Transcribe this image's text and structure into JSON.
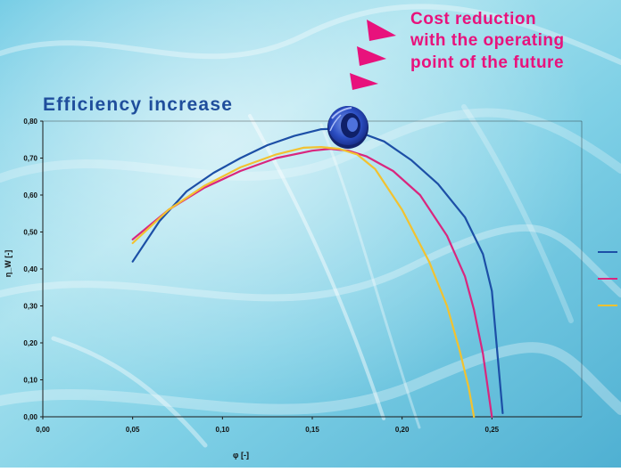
{
  "headline": {
    "lines": [
      "Cost reduction",
      "with the operating",
      "point of the future"
    ],
    "color": "#e8127c"
  },
  "chart_data": {
    "type": "line",
    "title": "Efficiency increase",
    "title_color": "#1f4e9c",
    "xlabel": "φ [-]",
    "ylabel": "η_W [-]",
    "xlim": [
      0,
      0.3
    ],
    "ylim": [
      0,
      0.8
    ],
    "x_ticks": [
      "0,00",
      "0,05",
      "0,10",
      "0,15",
      "0,20",
      "0,25"
    ],
    "x_tick_values": [
      0,
      0.05,
      0.1,
      0.15,
      0.2,
      0.25
    ],
    "y_ticks": [
      "0,00",
      "0,10",
      "0,20",
      "0,30",
      "0,40",
      "0,50",
      "0,60",
      "0,70",
      "0,80"
    ],
    "y_tick_values": [
      0,
      0.1,
      0.2,
      0.3,
      0.4,
      0.5,
      0.6,
      0.7,
      0.8
    ],
    "grid": false,
    "legend_position": "right",
    "series": [
      {
        "color": "#1c4fa6",
        "x": [
          0.05,
          0.065,
          0.08,
          0.095,
          0.11,
          0.125,
          0.14,
          0.155,
          0.165,
          0.175,
          0.19,
          0.205,
          0.22,
          0.235,
          0.245,
          0.25,
          0.256
        ],
        "y": [
          0.42,
          0.53,
          0.61,
          0.66,
          0.7,
          0.735,
          0.76,
          0.778,
          0.78,
          0.772,
          0.745,
          0.695,
          0.63,
          0.54,
          0.44,
          0.34,
          0.01
        ]
      },
      {
        "color": "#d9267e",
        "x": [
          0.05,
          0.07,
          0.09,
          0.11,
          0.13,
          0.15,
          0.16,
          0.17,
          0.18,
          0.195,
          0.21,
          0.225,
          0.235,
          0.24,
          0.245,
          0.25
        ],
        "y": [
          0.48,
          0.56,
          0.62,
          0.665,
          0.7,
          0.72,
          0.725,
          0.72,
          0.705,
          0.665,
          0.6,
          0.49,
          0.38,
          0.29,
          0.17,
          0.0
        ]
      },
      {
        "color": "#f2c230",
        "x": [
          0.05,
          0.07,
          0.09,
          0.11,
          0.13,
          0.145,
          0.155,
          0.165,
          0.175,
          0.185,
          0.2,
          0.215,
          0.225,
          0.232,
          0.237,
          0.24
        ],
        "y": [
          0.47,
          0.56,
          0.625,
          0.675,
          0.71,
          0.728,
          0.73,
          0.725,
          0.71,
          0.67,
          0.56,
          0.42,
          0.3,
          0.18,
          0.08,
          0.0
        ]
      }
    ]
  }
}
